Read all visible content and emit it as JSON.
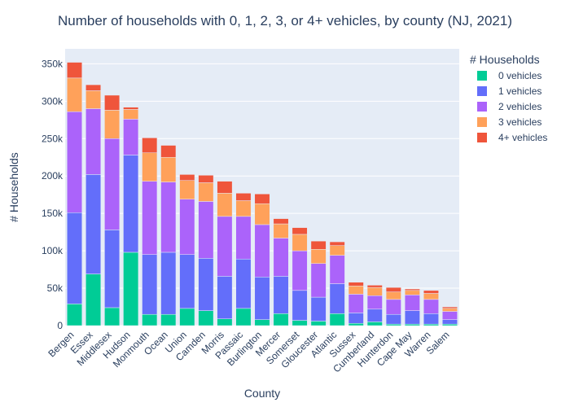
{
  "chart_data": {
    "type": "bar",
    "stacked": true,
    "title": "Number of households with 0, 1, 2, 3, or 4+ vehicles, by county (NJ, 2021)",
    "xlabel": "County",
    "ylabel": "# Households",
    "ylim": [
      0,
      370000
    ],
    "yticks": [
      0,
      50000,
      100000,
      150000,
      200000,
      250000,
      300000,
      350000
    ],
    "ytick_labels": [
      "0",
      "50k",
      "100k",
      "150k",
      "200k",
      "250k",
      "300k",
      "350k"
    ],
    "grid": true,
    "legend": {
      "title": "# Households",
      "placement": "right"
    },
    "categories": [
      "Bergen",
      "Essex",
      "Middlesex",
      "Hudson",
      "Monmouth",
      "Ocean",
      "Union",
      "Camden",
      "Morris",
      "Passaic",
      "Burlington",
      "Mercer",
      "Somerset",
      "Gloucester",
      "Atlantic",
      "Sussex",
      "Cumberland",
      "Hunterdon",
      "Cape May",
      "Warren",
      "Salem"
    ],
    "series": [
      {
        "name": "0 vehicles",
        "color": "#00cc96",
        "values": [
          29000,
          69000,
          24000,
          98000,
          15000,
          15000,
          23000,
          20000,
          9000,
          23000,
          8000,
          16000,
          7000,
          6000,
          16000,
          3000,
          5000,
          2000,
          2000,
          2000,
          2000
        ]
      },
      {
        "name": "1 vehicles",
        "color": "#636efa",
        "values": [
          122000,
          133000,
          104000,
          130000,
          80000,
          83000,
          72000,
          70000,
          57000,
          66000,
          57000,
          50000,
          40000,
          32000,
          40000,
          14000,
          17000,
          13000,
          18000,
          14000,
          6000
        ]
      },
      {
        "name": "2 vehicles",
        "color": "#ab63fa",
        "values": [
          135000,
          88000,
          122000,
          48000,
          98000,
          94000,
          74000,
          76000,
          80000,
          57000,
          70000,
          51000,
          53000,
          45000,
          38000,
          25000,
          18000,
          20000,
          21000,
          19000,
          11000
        ]
      },
      {
        "name": "3 vehicles",
        "color": "#ffa15a",
        "values": [
          45000,
          24000,
          38000,
          13000,
          38000,
          33000,
          25000,
          25000,
          31000,
          21000,
          28000,
          19000,
          22000,
          19000,
          13000,
          11000,
          11000,
          10000,
          6000,
          8000,
          4000
        ]
      },
      {
        "name": "4+ vehicles",
        "color": "#ef553b",
        "values": [
          21000,
          8000,
          20000,
          3000,
          20000,
          16000,
          8000,
          10000,
          16000,
          10000,
          13000,
          7000,
          9000,
          11000,
          5000,
          5000,
          3000,
          6000,
          2000,
          4000,
          2000
        ]
      }
    ]
  }
}
